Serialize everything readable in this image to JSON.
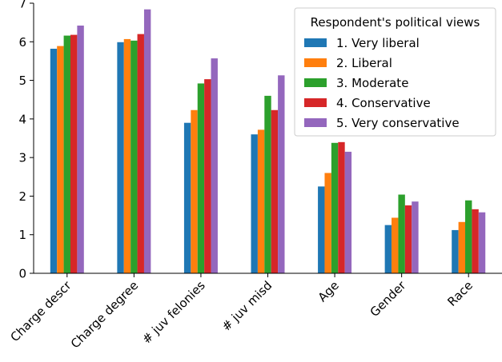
{
  "chart_data": {
    "type": "bar",
    "categories": [
      "Charge descr",
      "Charge degree",
      "# juv felonies",
      "# juv misd",
      "Age",
      "Gender",
      "Race"
    ],
    "series": [
      {
        "name": "1. Very liberal",
        "color": "#1f77b4",
        "values": [
          5.82,
          5.99,
          3.9,
          3.6,
          2.25,
          1.25,
          1.12
        ]
      },
      {
        "name": "2. Liberal",
        "color": "#ff7f0e",
        "values": [
          5.89,
          6.07,
          4.23,
          3.72,
          2.6,
          1.44,
          1.33
        ]
      },
      {
        "name": "3. Moderate",
        "color": "#2ca02c",
        "values": [
          6.16,
          6.03,
          4.92,
          4.6,
          3.38,
          2.04,
          1.89
        ]
      },
      {
        "name": "4. Conservative",
        "color": "#d62728",
        "values": [
          6.18,
          6.2,
          5.03,
          4.23,
          3.4,
          1.76,
          1.66
        ]
      },
      {
        "name": "5. Very conservative",
        "color": "#9467bd",
        "values": [
          6.42,
          6.84,
          5.57,
          5.13,
          3.15,
          1.86,
          1.58
        ]
      }
    ],
    "ylim": [
      0,
      7
    ],
    "yticks": [
      0,
      1,
      2,
      3,
      4,
      5,
      6,
      7
    ],
    "legend": {
      "title": "Respondent's political views",
      "placement": "top-right"
    },
    "grid": false
  }
}
